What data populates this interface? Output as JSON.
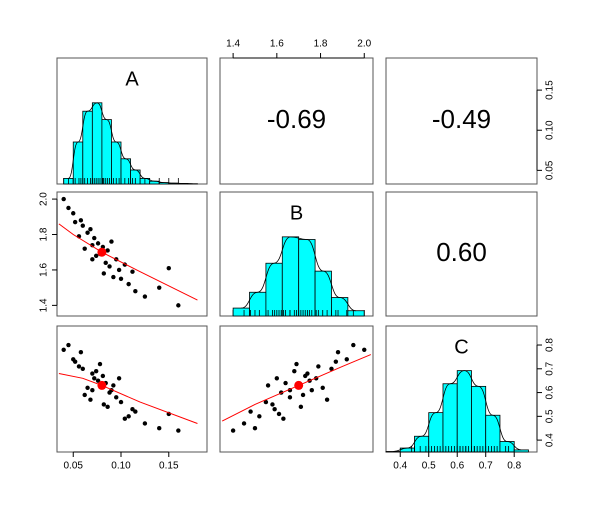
{
  "chart_data": {
    "type": "pairs",
    "variables": [
      {
        "name": "A",
        "lim": [
          0.033,
          0.19
        ],
        "ticks": [
          {
            "value": 0.05,
            "label": "0.05"
          },
          {
            "value": 0.1,
            "label": "0.10"
          },
          {
            "value": 0.15,
            "label": "0.15"
          }
        ],
        "bins": [
          0.04,
          0.05,
          0.06,
          0.07,
          0.08,
          0.09,
          0.1,
          0.11,
          0.12,
          0.13,
          0.14,
          0.15,
          0.16,
          0.17,
          0.18
        ],
        "counts": [
          20,
          150,
          260,
          290,
          230,
          150,
          90,
          50,
          20,
          10,
          5,
          3,
          2,
          1
        ],
        "hist_ylim": [
          0,
          450
        ],
        "mean": 0.08,
        "observations": [
          0.08,
          0.06,
          0.1,
          0.05,
          0.115,
          0.072,
          0.088,
          0.095,
          0.07,
          0.082,
          0.065,
          0.078,
          0.108,
          0.058,
          0.084,
          0.09,
          0.098,
          0.062,
          0.045,
          0.125,
          0.074,
          0.068,
          0.092,
          0.086,
          0.056,
          0.104,
          0.076,
          0.14,
          0.052,
          0.16,
          0.07,
          0.081,
          0.112,
          0.04,
          0.15
        ]
      },
      {
        "name": "B",
        "lim": [
          1.34,
          2.04
        ],
        "ticks": [
          1.4,
          1.6,
          1.8,
          {
            "value": 2,
            "label": "2.0"
          }
        ],
        "bins": [
          1.4,
          1.475,
          1.55,
          1.625,
          1.7,
          1.775,
          1.85,
          1.925,
          2.0
        ],
        "counts": [
          30,
          90,
          200,
          300,
          290,
          170,
          70,
          20
        ],
        "hist_ylim": [
          0,
          470
        ],
        "mean": 1.7,
        "observations": [
          1.7,
          1.85,
          1.55,
          1.92,
          1.48,
          1.78,
          1.62,
          1.66,
          1.74,
          1.58,
          1.81,
          1.69,
          1.52,
          1.88,
          1.64,
          1.76,
          1.6,
          1.72,
          1.95,
          1.45,
          1.68,
          1.83,
          1.56,
          1.71,
          1.79,
          1.63,
          1.75,
          1.5,
          1.87,
          1.4,
          1.66,
          1.73,
          1.59,
          2.0,
          1.61
        ]
      },
      {
        "name": "C",
        "lim": [
          0.35,
          0.88
        ],
        "ticks": [
          0.4,
          0.5,
          0.6,
          0.7,
          0.8
        ],
        "bins": [
          0.35,
          0.4,
          0.45,
          0.5,
          0.55,
          0.6,
          0.65,
          0.7,
          0.75,
          0.8,
          0.85
        ],
        "counts": [
          2,
          15,
          60,
          150,
          260,
          310,
          250,
          140,
          40,
          8
        ],
        "hist_ylim": [
          0,
          480
        ],
        "mean": 0.63,
        "observations": [
          0.63,
          0.7,
          0.56,
          0.74,
          0.52,
          0.66,
          0.6,
          0.58,
          0.68,
          0.55,
          0.62,
          0.72,
          0.5,
          0.77,
          0.64,
          0.61,
          0.66,
          0.59,
          0.8,
          0.47,
          0.69,
          0.57,
          0.63,
          0.54,
          0.71,
          0.49,
          0.65,
          0.45,
          0.73,
          0.44,
          0.61,
          0.67,
          0.53,
          0.78,
          0.51
        ]
      }
    ],
    "correlations": [
      -0.69,
      -0.49,
      {
        "value": 0.6,
        "label": "0.60"
      }
    ],
    "smooths": [
      {
        "x": [
          0.035,
          0.05,
          0.08,
          0.12,
          0.18
        ],
        "y": [
          1.86,
          1.8,
          1.7,
          1.59,
          1.43
        ]
      },
      {
        "x": [
          0.035,
          0.06,
          0.08,
          0.12,
          0.18
        ],
        "y": [
          0.68,
          0.66,
          0.63,
          0.56,
          0.47
        ]
      },
      {
        "x": [
          1.35,
          1.5,
          1.7,
          1.9,
          2.03
        ],
        "y": [
          0.48,
          0.55,
          0.63,
          0.71,
          0.76
        ]
      }
    ],
    "hist_color": "#00ffff",
    "point_color": "#000000",
    "smooth_color": "#ff0000"
  }
}
